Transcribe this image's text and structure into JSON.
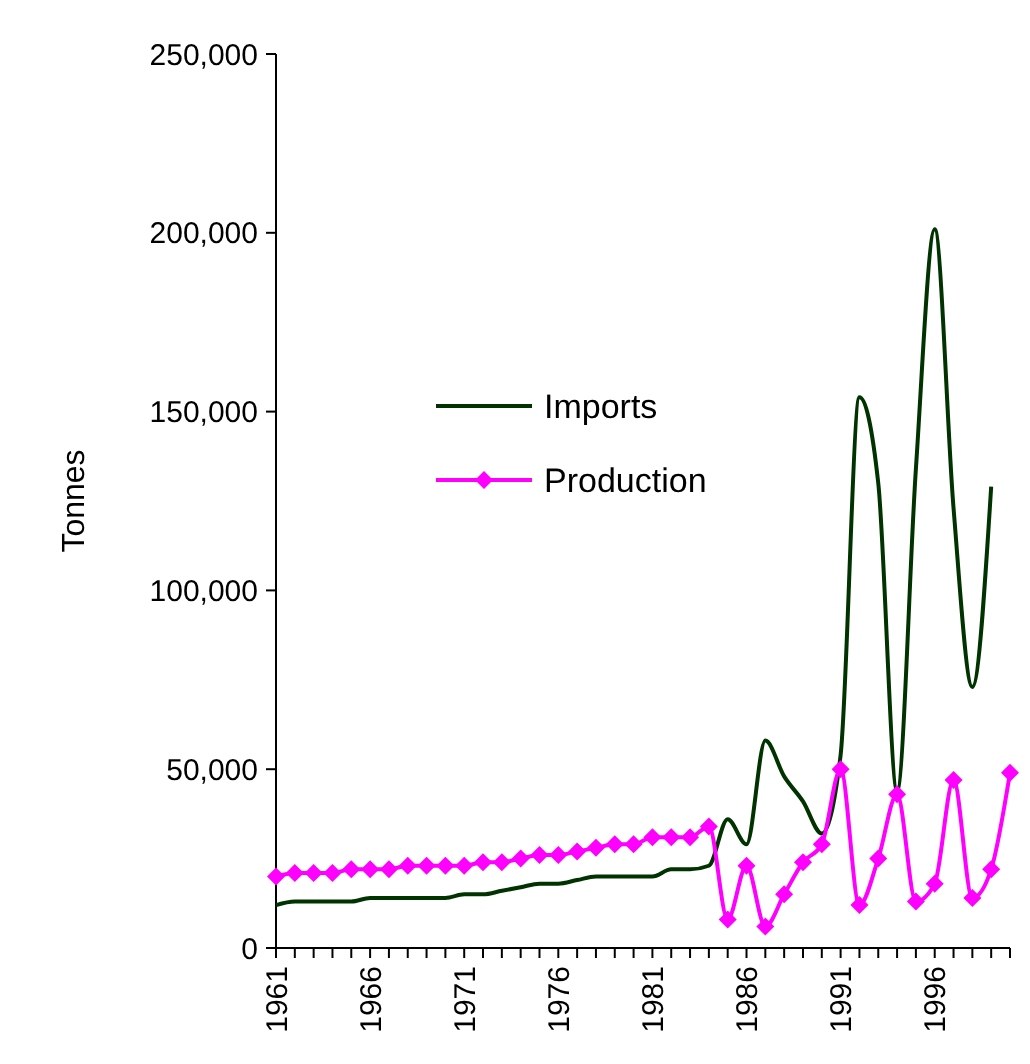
{
  "chart_data": {
    "type": "line",
    "ylabel": "Tonnes",
    "xlim": [
      1961,
      2000
    ],
    "xticks": [
      1961,
      {
        "value": 1962,
        "label": null
      },
      {
        "value": 1963,
        "label": null
      },
      {
        "value": 1964,
        "label": null
      },
      {
        "value": 1965,
        "label": null
      },
      1966,
      {
        "value": 1967,
        "label": null
      },
      {
        "value": 1968,
        "label": null
      },
      {
        "value": 1969,
        "label": null
      },
      {
        "value": 1970,
        "label": null
      },
      1971,
      {
        "value": 1972,
        "label": null
      },
      {
        "value": 1973,
        "label": null
      },
      {
        "value": 1974,
        "label": null
      },
      {
        "value": 1975,
        "label": null
      },
      1976,
      {
        "value": 1977,
        "label": null
      },
      {
        "value": 1978,
        "label": null
      },
      {
        "value": 1979,
        "label": null
      },
      {
        "value": 1980,
        "label": null
      },
      1981,
      {
        "value": 1982,
        "label": null
      },
      {
        "value": 1983,
        "label": null
      },
      {
        "value": 1984,
        "label": null
      },
      {
        "value": 1985,
        "label": null
      },
      1986,
      {
        "value": 1987,
        "label": null
      },
      {
        "value": 1988,
        "label": null
      },
      {
        "value": 1989,
        "label": null
      },
      {
        "value": 1990,
        "label": null
      },
      1991,
      {
        "value": 1992,
        "label": null
      },
      {
        "value": 1993,
        "label": null
      },
      {
        "value": 1994,
        "label": null
      },
      {
        "value": 1995,
        "label": null
      },
      1996,
      {
        "value": 1997,
        "label": null
      },
      {
        "value": 1998,
        "label": null
      },
      {
        "value": 1999,
        "label": null
      },
      {
        "value": 2000,
        "label": null
      }
    ],
    "ylim": [
      0,
      250000
    ],
    "yticks": [
      {
        "value": 0,
        "label": "0"
      },
      {
        "value": 50000,
        "label": "50,000"
      },
      {
        "value": 100000,
        "label": "100,000"
      },
      {
        "value": 150000,
        "label": "150,000"
      },
      {
        "value": 200000,
        "label": "200,000"
      },
      {
        "value": 250000,
        "label": "250,000"
      }
    ],
    "grid": false,
    "legend": "top",
    "series": [
      {
        "name": "Imports",
        "color": "#003300",
        "marker": "none",
        "x": [
          1961,
          1962,
          1963,
          1964,
          1965,
          1966,
          1967,
          1968,
          1969,
          1970,
          1971,
          1972,
          1973,
          1974,
          1975,
          1976,
          1977,
          1978,
          1979,
          1980,
          1981,
          1982,
          1983,
          1984,
          1985,
          1986,
          1987,
          1988,
          1989,
          1990,
          1991,
          1992,
          1993,
          1994,
          1995,
          1996,
          1997,
          1998,
          1999
        ],
        "values": [
          12000,
          13000,
          13000,
          13000,
          13000,
          14000,
          14000,
          14000,
          14000,
          14000,
          15000,
          15000,
          16000,
          17000,
          18000,
          18000,
          19000,
          20000,
          20000,
          20000,
          20000,
          22000,
          22000,
          23000,
          36000,
          29000,
          58000,
          48000,
          41000,
          32000,
          54000,
          154000,
          130000,
          44000,
          134000,
          201000,
          123000,
          73000,
          129000
        ]
      },
      {
        "name": "Production",
        "color": "#ff00ff",
        "marker": "diamond",
        "x": [
          1961,
          1962,
          1963,
          1964,
          1965,
          1966,
          1967,
          1968,
          1969,
          1970,
          1971,
          1972,
          1973,
          1974,
          1975,
          1976,
          1977,
          1978,
          1979,
          1980,
          1981,
          1982,
          1983,
          1984,
          1985,
          1986,
          1987,
          1988,
          1989,
          1990,
          1991,
          1992,
          1993,
          1994,
          1995,
          1996,
          1997,
          1998,
          1999,
          2000
        ],
        "values": [
          20000,
          21000,
          21000,
          21000,
          22000,
          22000,
          22000,
          23000,
          23000,
          23000,
          23000,
          24000,
          24000,
          25000,
          26000,
          26000,
          27000,
          28000,
          29000,
          29000,
          31000,
          31000,
          31000,
          34000,
          8000,
          23000,
          6000,
          15000,
          24000,
          29000,
          50000,
          12000,
          25000,
          43000,
          13000,
          18000,
          47000,
          14000,
          22000,
          49000
        ]
      }
    ]
  }
}
